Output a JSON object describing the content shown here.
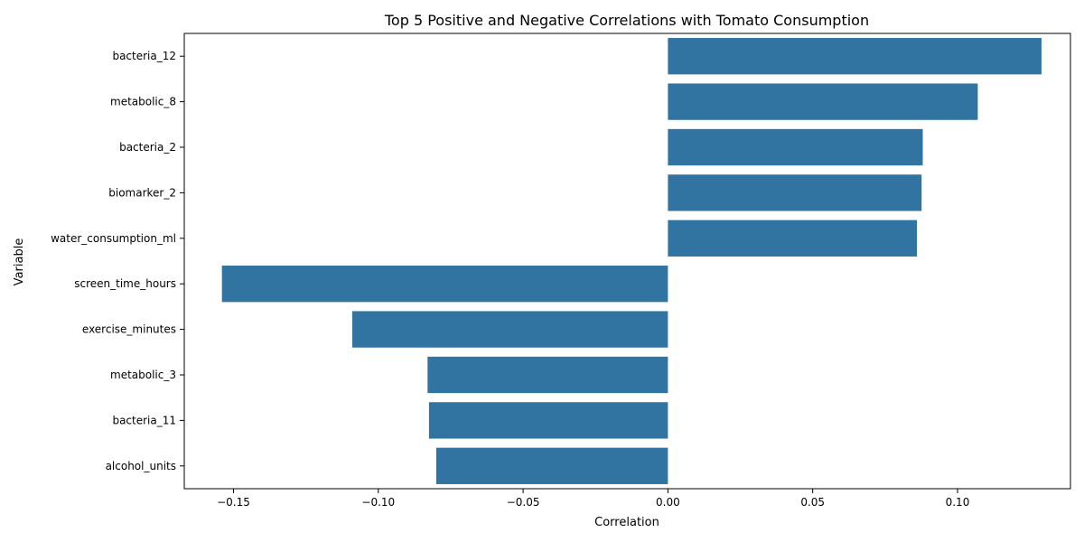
{
  "chart_data": {
    "type": "bar",
    "orientation": "horizontal",
    "title": "Top 5 Positive and Negative Correlations with Tomato Consumption",
    "xlabel": "Correlation",
    "ylabel": "Variable",
    "xlim": [
      -0.167,
      0.139
    ],
    "xticks": [
      -0.15,
      -0.1,
      -0.05,
      0.0,
      0.05,
      0.1
    ],
    "xtick_labels": [
      "−0.15",
      "−0.10",
      "−0.05",
      "0.00",
      "0.05",
      "0.10"
    ],
    "categories": [
      "bacteria_12",
      "metabolic_8",
      "bacteria_2",
      "biomarker_2",
      "water_consumption_ml",
      "screen_time_hours",
      "exercise_minutes",
      "metabolic_3",
      "bacteria_11",
      "alcohol_units"
    ],
    "values": [
      0.129,
      0.107,
      0.088,
      0.0876,
      0.086,
      -0.154,
      -0.109,
      -0.083,
      -0.0825,
      -0.08
    ],
    "bar_color": "#3274a1",
    "grid": false,
    "legend": "none"
  }
}
